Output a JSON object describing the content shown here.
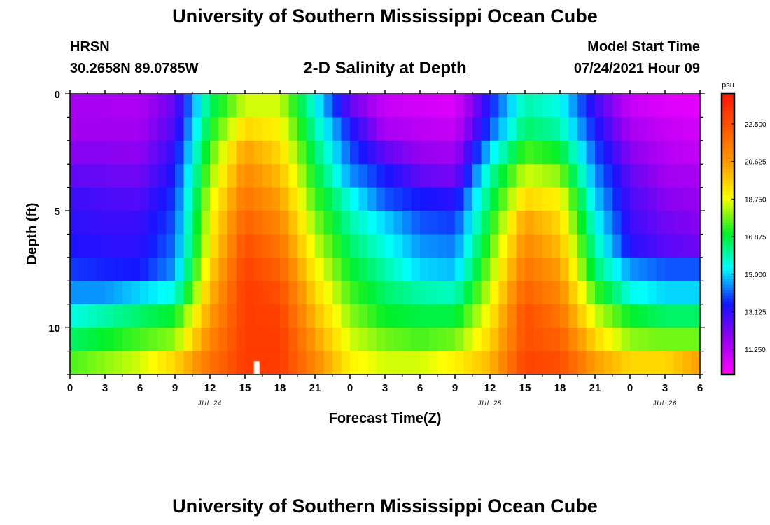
{
  "header": {
    "top_title": "University of Southern Mississippi Ocean Cube",
    "bottom_title": "University of Southern Mississippi Ocean Cube",
    "station": "HRSN",
    "coordinates": "30.2658N  89.0785W",
    "subtitle": "2-D Salinity at Depth",
    "model_label": "Model Start Time",
    "model_time": "07/24/2021 Hour 09"
  },
  "chart_data": {
    "type": "heatmap",
    "title": "2-D Salinity at Depth",
    "xlabel": "Forecast Time(Z)",
    "ylabel": "Depth (ft)",
    "x_range_hours": [
      0,
      54
    ],
    "y_range_ft": [
      0,
      12
    ],
    "x_ticks": [
      "0",
      "3",
      "6",
      "9",
      "12",
      "15",
      "18",
      "21",
      "0",
      "3",
      "6",
      "9",
      "12",
      "15",
      "18",
      "21",
      "0",
      "3",
      "6"
    ],
    "y_ticks": [
      "0",
      "5",
      "10"
    ],
    "date_labels": [
      {
        "text": "JUL 24",
        "hour": 12
      },
      {
        "text": "JUL 25",
        "hour": 36
      },
      {
        "text": "JUL 26",
        "hour": 51
      }
    ],
    "colorbar": {
      "units": "psu",
      "min": 10.0,
      "max": 24.0,
      "tick_labels": [
        "22.500",
        "20.625",
        "18.750",
        "16.875",
        "15.000",
        "13.125",
        "11.250"
      ],
      "tick_values": [
        22.5,
        20.625,
        18.75,
        16.875,
        15.0,
        13.125,
        11.25
      ]
    },
    "depth_levels_ft": [
      0.5,
      1.5,
      2.5,
      3.5,
      4.5,
      5.5,
      6.5,
      7.5,
      8.5,
      9.5,
      10.5,
      11.5
    ],
    "time_hours": [
      0,
      3,
      6,
      9,
      12,
      15,
      18,
      21,
      24,
      27,
      30,
      33,
      36,
      39,
      42,
      45,
      48,
      51,
      54
    ],
    "salinity_psu": [
      [
        11.5,
        11.5,
        11.4,
        12.5,
        16.5,
        18.5,
        18.5,
        15.5,
        12.5,
        11.0,
        10.8,
        10.6,
        13.5,
        16.0,
        15.5,
        13.0,
        11.0,
        10.6,
        10.5
      ],
      [
        11.6,
        11.6,
        11.6,
        12.8,
        17.0,
        19.5,
        19.0,
        16.0,
        13.5,
        11.5,
        11.2,
        11.0,
        14.0,
        16.5,
        16.0,
        13.5,
        11.5,
        11.0,
        10.8
      ],
      [
        12.0,
        12.0,
        11.9,
        13.2,
        17.5,
        20.5,
        19.5,
        16.5,
        14.0,
        12.5,
        11.8,
        11.6,
        15.0,
        17.5,
        17.0,
        14.0,
        12.0,
        11.3,
        11.0
      ],
      [
        12.5,
        12.4,
        12.3,
        13.5,
        18.0,
        21.0,
        20.0,
        17.0,
        14.5,
        13.5,
        12.5,
        12.2,
        16.0,
        18.5,
        18.0,
        14.5,
        12.5,
        11.6,
        11.5
      ],
      [
        13.0,
        12.8,
        12.7,
        13.8,
        18.5,
        21.5,
        20.5,
        17.5,
        15.5,
        14.0,
        13.5,
        13.2,
        16.5,
        19.5,
        19.0,
        15.0,
        12.8,
        12.0,
        11.8
      ],
      [
        13.2,
        13.0,
        13.0,
        14.0,
        18.8,
        22.0,
        21.0,
        18.0,
        16.0,
        15.0,
        14.0,
        13.8,
        17.0,
        20.5,
        19.5,
        15.5,
        13.0,
        12.3,
        12.0
      ],
      [
        13.4,
        13.2,
        13.2,
        14.2,
        19.0,
        22.5,
        21.5,
        18.5,
        16.5,
        15.5,
        14.5,
        14.3,
        17.5,
        21.0,
        20.0,
        16.0,
        13.3,
        12.6,
        12.3
      ],
      [
        13.8,
        13.6,
        13.5,
        14.5,
        19.5,
        22.8,
        22.0,
        19.0,
        17.0,
        16.0,
        15.0,
        14.8,
        18.0,
        21.5,
        20.5,
        16.5,
        14.5,
        14.0,
        14.0
      ],
      [
        14.5,
        14.5,
        15.0,
        15.5,
        20.0,
        23.0,
        22.5,
        19.5,
        17.5,
        16.5,
        16.0,
        15.8,
        18.5,
        22.0,
        21.0,
        17.5,
        15.5,
        15.0,
        15.0
      ],
      [
        15.5,
        16.0,
        16.5,
        17.0,
        20.5,
        23.0,
        22.8,
        20.0,
        18.0,
        17.0,
        16.8,
        16.8,
        19.0,
        22.5,
        21.5,
        18.5,
        17.0,
        16.5,
        16.5
      ],
      [
        16.5,
        17.0,
        17.5,
        18.0,
        21.0,
        23.0,
        23.0,
        20.5,
        18.5,
        17.8,
        17.5,
        17.8,
        19.5,
        22.5,
        22.0,
        19.5,
        18.0,
        17.8,
        17.8
      ],
      [
        17.5,
        18.0,
        18.5,
        19.5,
        21.5,
        23.0,
        23.0,
        21.0,
        19.0,
        18.5,
        18.5,
        19.0,
        20.0,
        22.8,
        22.5,
        20.5,
        19.5,
        19.5,
        20.5
      ]
    ],
    "marker": {
      "hour": 16.0,
      "depth_ft": 11.5,
      "color": "#ffffff"
    }
  }
}
